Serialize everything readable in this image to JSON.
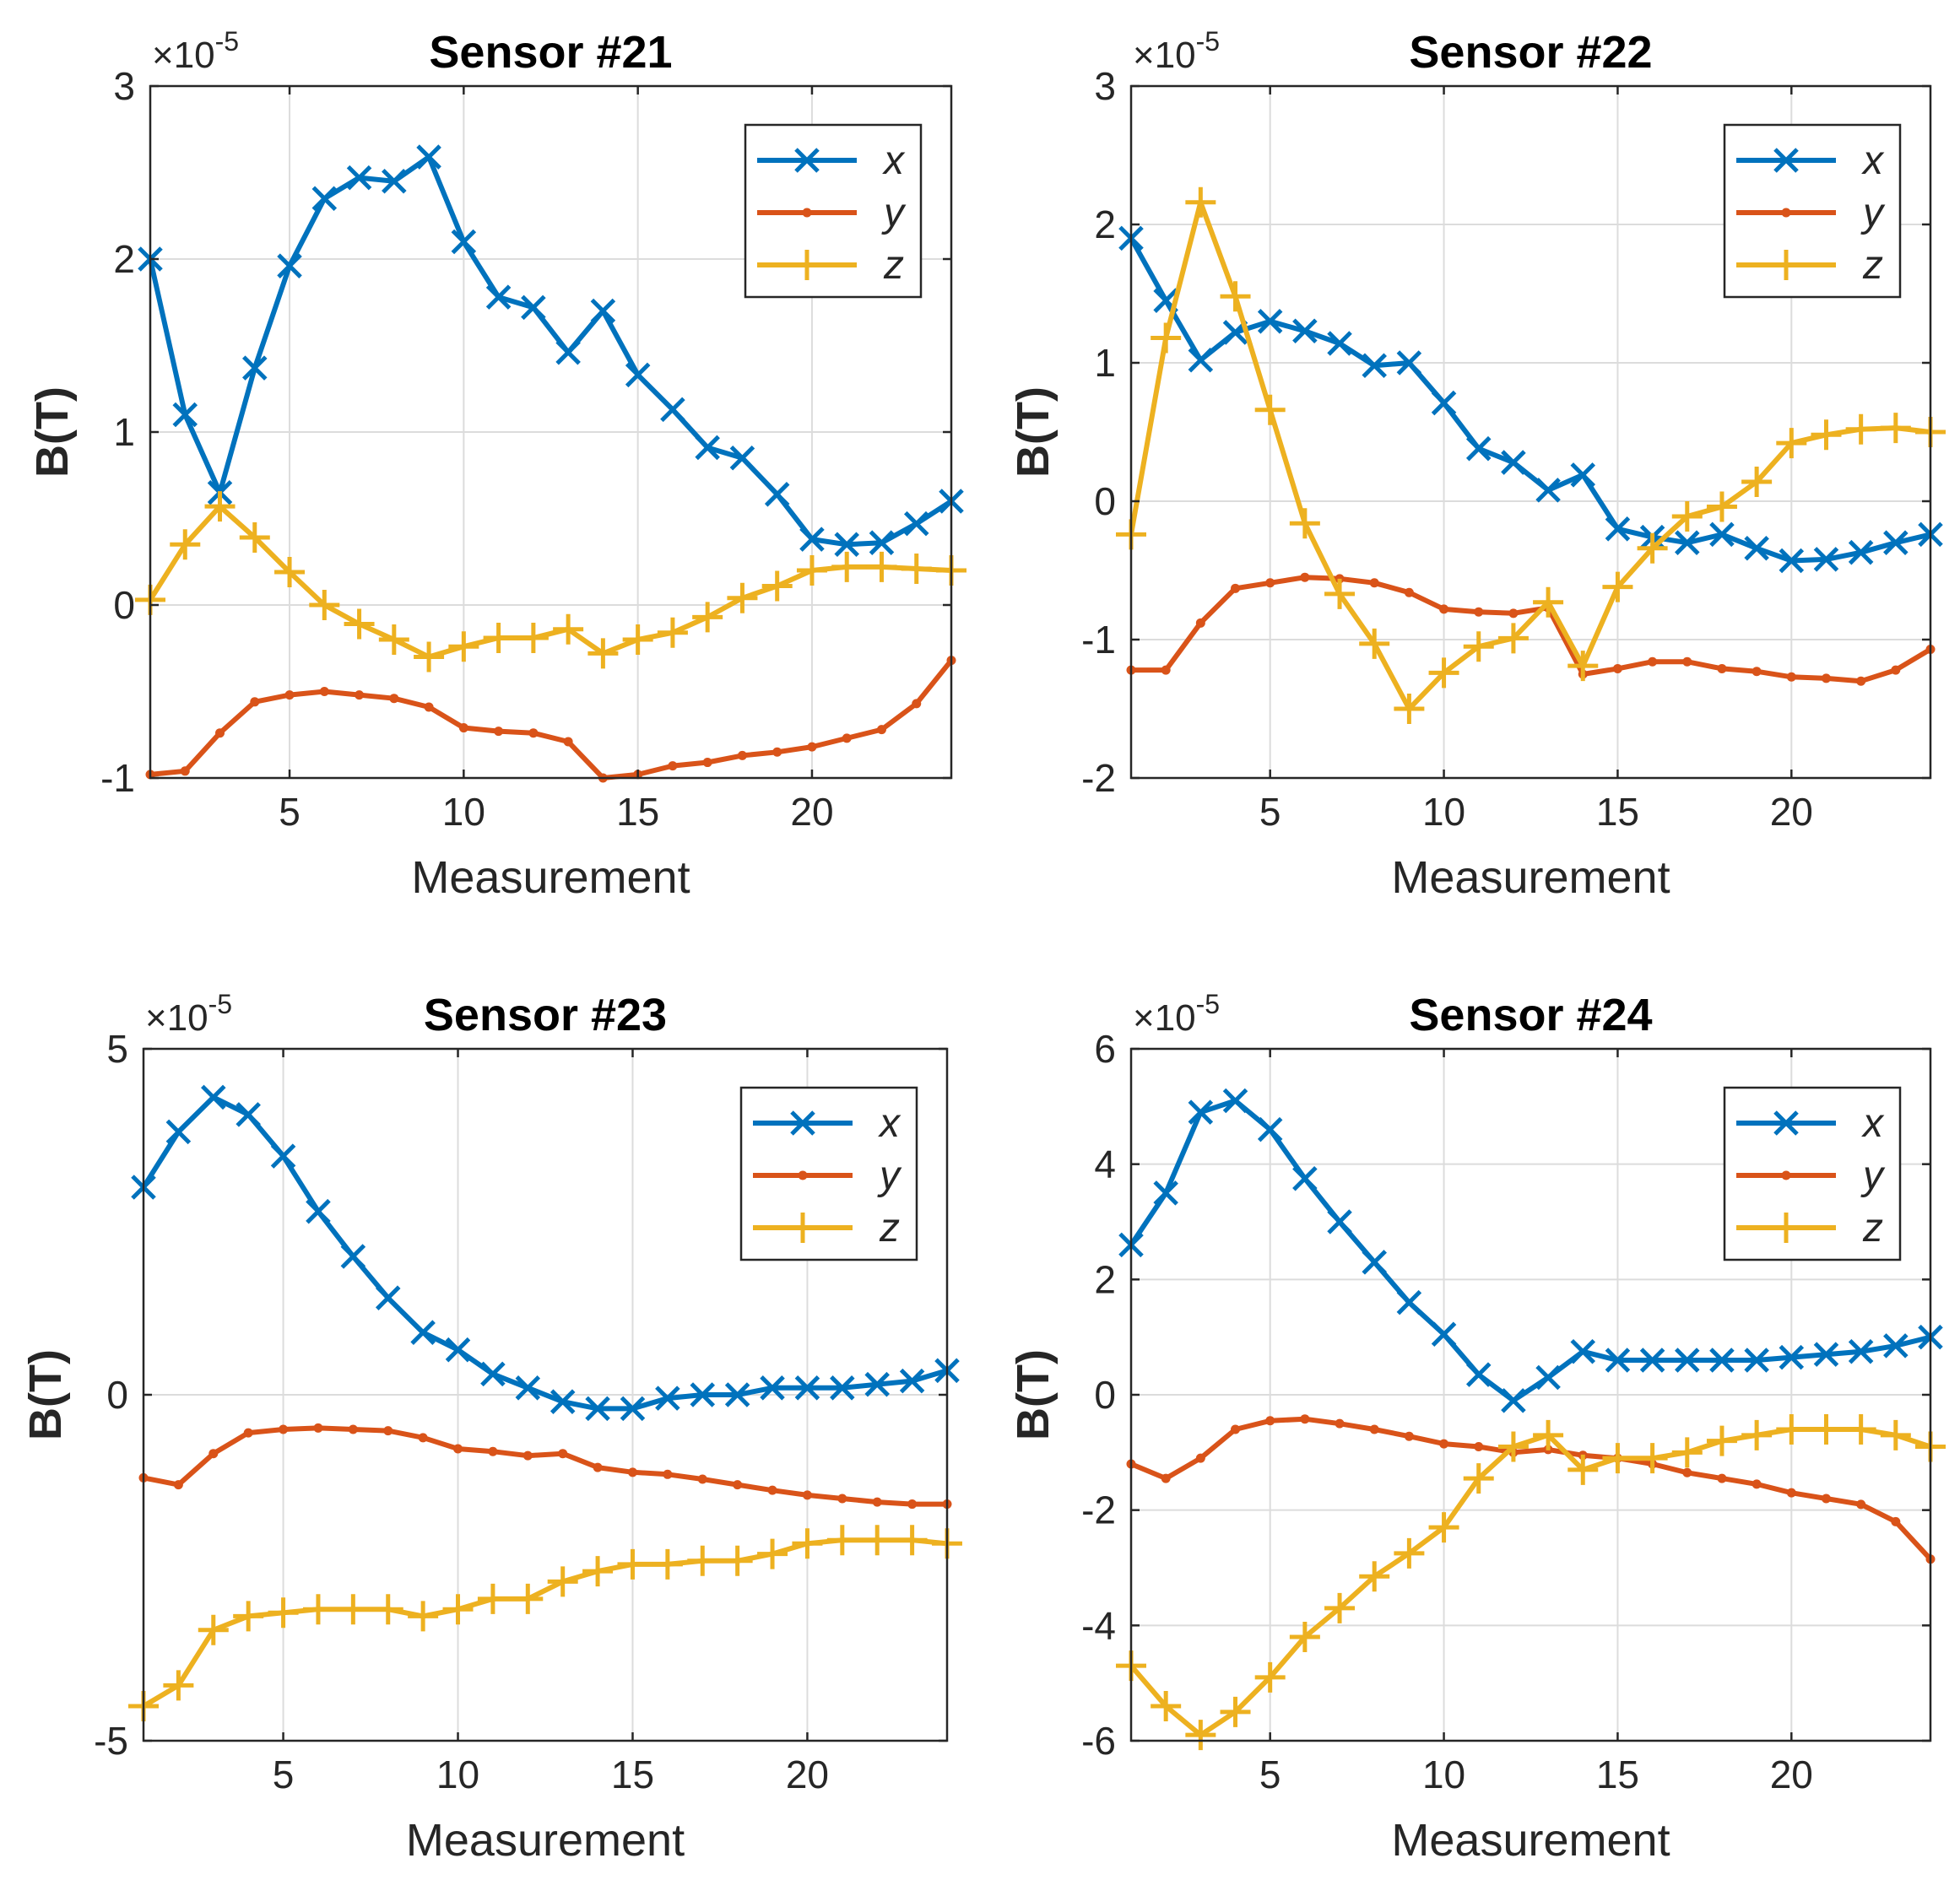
{
  "figure": {
    "ylabel": "B(T)",
    "xlabel": "Measurement",
    "multiplier_base": "×10",
    "multiplier_exp": "-5"
  },
  "colors": {
    "x": "#0072BD",
    "y": "#D95319",
    "z": "#EDB120"
  },
  "chart_data": [
    {
      "type": "line",
      "title": "Sensor #21",
      "xlabel": "Measurement",
      "ylabel": "B(T)",
      "xlim": [
        1,
        24
      ],
      "ylim": [
        -1,
        3
      ],
      "xticks": [
        5,
        10,
        15,
        20
      ],
      "yticks": [
        -1,
        0,
        1,
        2,
        3
      ],
      "ytick_labels": [
        "-1",
        "0",
        "1",
        "2",
        "3"
      ],
      "multiplier": "×10-5",
      "legend_location": "top-right",
      "x": [
        1,
        2,
        3,
        4,
        5,
        6,
        7,
        8,
        9,
        10,
        11,
        12,
        13,
        14,
        15,
        16,
        17,
        18,
        19,
        20,
        21,
        22,
        23,
        24
      ],
      "series": [
        {
          "name": "x",
          "marker": "x",
          "values": [
            2.0,
            1.1,
            0.65,
            1.37,
            1.96,
            2.35,
            2.47,
            2.45,
            2.59,
            2.1,
            1.78,
            1.72,
            1.46,
            1.7,
            1.33,
            1.13,
            0.91,
            0.85,
            0.64,
            0.38,
            0.35,
            0.36,
            0.47,
            0.6
          ]
        },
        {
          "name": "y",
          "marker": "dot",
          "values": [
            -0.98,
            -0.96,
            -0.74,
            -0.56,
            -0.52,
            -0.5,
            -0.52,
            -0.54,
            -0.59,
            -0.71,
            -0.73,
            -0.74,
            -0.79,
            -1.0,
            -0.98,
            -0.93,
            -0.91,
            -0.87,
            -0.85,
            -0.82,
            -0.77,
            -0.72,
            -0.57,
            -0.32
          ]
        },
        {
          "name": "z",
          "marker": "plus",
          "values": [
            0.03,
            0.35,
            0.57,
            0.39,
            0.19,
            0.0,
            -0.11,
            -0.2,
            -0.3,
            -0.24,
            -0.19,
            -0.19,
            -0.14,
            -0.28,
            -0.2,
            -0.16,
            -0.07,
            0.04,
            0.11,
            0.2,
            0.22,
            0.22,
            0.21,
            0.2
          ]
        }
      ]
    },
    {
      "type": "line",
      "title": "Sensor #22",
      "xlabel": "Measurement",
      "ylabel": "B(T)",
      "xlim": [
        1,
        24
      ],
      "ylim": [
        -2,
        3
      ],
      "xticks": [
        5,
        10,
        15,
        20
      ],
      "yticks": [
        -2,
        -1,
        0,
        1,
        2,
        3
      ],
      "ytick_labels": [
        "-2",
        "-1",
        "0",
        "1",
        "2",
        "3"
      ],
      "multiplier": "×10-5",
      "legend_location": "top-right",
      "x": [
        1,
        2,
        3,
        4,
        5,
        6,
        7,
        8,
        9,
        10,
        11,
        12,
        13,
        14,
        15,
        16,
        17,
        18,
        19,
        20,
        21,
        22,
        23,
        24
      ],
      "series": [
        {
          "name": "x",
          "marker": "x",
          "values": [
            1.9,
            1.45,
            1.02,
            1.22,
            1.3,
            1.23,
            1.14,
            0.98,
            1.0,
            0.71,
            0.38,
            0.28,
            0.08,
            0.19,
            -0.2,
            -0.26,
            -0.3,
            -0.24,
            -0.34,
            -0.43,
            -0.42,
            -0.37,
            -0.3,
            -0.24
          ]
        },
        {
          "name": "y",
          "marker": "dot",
          "values": [
            -1.22,
            -1.22,
            -0.88,
            -0.63,
            -0.59,
            -0.55,
            -0.56,
            -0.59,
            -0.66,
            -0.78,
            -0.8,
            -0.81,
            -0.77,
            -1.25,
            -1.21,
            -1.16,
            -1.16,
            -1.21,
            -1.23,
            -1.27,
            -1.28,
            -1.3,
            -1.22,
            -1.07
          ]
        },
        {
          "name": "z",
          "marker": "plus",
          "values": [
            -0.24,
            1.18,
            2.16,
            1.48,
            0.66,
            -0.16,
            -0.67,
            -1.03,
            -1.5,
            -1.24,
            -1.05,
            -0.99,
            -0.73,
            -1.19,
            -0.62,
            -0.34,
            -0.11,
            -0.04,
            0.14,
            0.42,
            0.48,
            0.52,
            0.53,
            0.5
          ]
        }
      ]
    },
    {
      "type": "line",
      "title": "Sensor #23",
      "xlabel": "Measurement",
      "ylabel": "B(T)",
      "xlim": [
        1,
        24
      ],
      "ylim": [
        -5,
        5
      ],
      "xticks": [
        5,
        10,
        15,
        20
      ],
      "yticks": [
        -5,
        0,
        5
      ],
      "ytick_labels": [
        "-5",
        "0",
        "5"
      ],
      "multiplier": "×10-5",
      "legend_location": "top-right",
      "x": [
        1,
        2,
        3,
        4,
        5,
        6,
        7,
        8,
        9,
        10,
        11,
        12,
        13,
        14,
        15,
        16,
        17,
        18,
        19,
        20,
        21,
        22,
        23,
        24
      ],
      "series": [
        {
          "name": "x",
          "marker": "x",
          "values": [
            3.0,
            3.8,
            4.3,
            4.05,
            3.45,
            2.65,
            2.0,
            1.4,
            0.9,
            0.65,
            0.3,
            0.1,
            -0.1,
            -0.2,
            -0.2,
            -0.05,
            0.0,
            0.0,
            0.1,
            0.1,
            0.1,
            0.15,
            0.2,
            0.35
          ]
        },
        {
          "name": "y",
          "marker": "dot",
          "values": [
            -1.2,
            -1.3,
            -0.85,
            -0.55,
            -0.5,
            -0.48,
            -0.5,
            -0.52,
            -0.62,
            -0.78,
            -0.82,
            -0.88,
            -0.85,
            -1.05,
            -1.12,
            -1.15,
            -1.22,
            -1.3,
            -1.38,
            -1.45,
            -1.5,
            -1.55,
            -1.58,
            -1.58
          ]
        },
        {
          "name": "z",
          "marker": "plus",
          "values": [
            -4.5,
            -4.2,
            -3.4,
            -3.2,
            -3.15,
            -3.1,
            -3.1,
            -3.1,
            -3.2,
            -3.1,
            -2.95,
            -2.95,
            -2.7,
            -2.55,
            -2.45,
            -2.45,
            -2.4,
            -2.4,
            -2.3,
            -2.15,
            -2.1,
            -2.1,
            -2.1,
            -2.15
          ]
        }
      ]
    },
    {
      "type": "line",
      "title": "Sensor #24",
      "xlabel": "Measurement",
      "ylabel": "B(T)",
      "xlim": [
        1,
        24
      ],
      "ylim": [
        -6,
        6
      ],
      "xticks": [
        5,
        10,
        15,
        20
      ],
      "yticks": [
        -6,
        -4,
        -2,
        0,
        2,
        4,
        6
      ],
      "ytick_labels": [
        "-6",
        "-4",
        "-2",
        "0",
        "2",
        "4",
        "6"
      ],
      "multiplier": "×10-5",
      "legend_location": "top-right",
      "x": [
        1,
        2,
        3,
        4,
        5,
        6,
        7,
        8,
        9,
        10,
        11,
        12,
        13,
        14,
        15,
        16,
        17,
        18,
        19,
        20,
        21,
        22,
        23,
        24
      ],
      "series": [
        {
          "name": "x",
          "marker": "x",
          "values": [
            2.6,
            3.5,
            4.9,
            5.1,
            4.6,
            3.75,
            3.0,
            2.3,
            1.6,
            1.05,
            0.35,
            -0.1,
            0.3,
            0.75,
            0.6,
            0.6,
            0.6,
            0.6,
            0.6,
            0.65,
            0.7,
            0.75,
            0.85,
            1.0
          ]
        },
        {
          "name": "y",
          "marker": "dot",
          "values": [
            -1.2,
            -1.45,
            -1.1,
            -0.6,
            -0.45,
            -0.42,
            -0.5,
            -0.6,
            -0.72,
            -0.85,
            -0.9,
            -1.0,
            -0.95,
            -1.05,
            -1.1,
            -1.2,
            -1.35,
            -1.45,
            -1.55,
            -1.7,
            -1.8,
            -1.9,
            -2.2,
            -2.85
          ]
        },
        {
          "name": "z",
          "marker": "plus",
          "values": [
            -4.7,
            -5.4,
            -5.9,
            -5.5,
            -4.9,
            -4.2,
            -3.7,
            -3.15,
            -2.75,
            -2.3,
            -1.45,
            -0.9,
            -0.7,
            -1.3,
            -1.1,
            -1.1,
            -1.0,
            -0.8,
            -0.7,
            -0.6,
            -0.6,
            -0.6,
            -0.7,
            -0.9
          ]
        }
      ]
    }
  ]
}
